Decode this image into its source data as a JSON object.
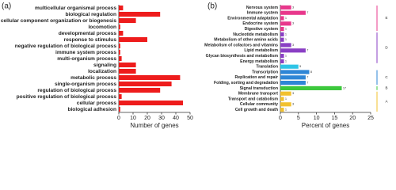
{
  "chart_data": [
    {
      "type": "bar",
      "orientation": "horizontal",
      "panel_label": "(a)",
      "x_label": "Number of genes",
      "categories": [
        "multicellular organismal process",
        "biological regulation",
        "cellular component organization or biogenesis",
        "locomotion",
        "developmental process",
        "response to stimulus",
        "negative regulation of biological process",
        "immune system process",
        "multi-organism process",
        "signaling",
        "localization",
        "metabolic process",
        "single-organism process",
        "regulation of biological process",
        "positive regulation of biological process",
        "cellular process",
        "biological adhesion"
      ],
      "values": [
        3,
        29,
        12,
        1,
        3,
        20,
        1,
        1,
        2,
        12,
        12,
        43,
        37,
        29,
        2,
        45,
        1
      ],
      "color": "#ee1c1c",
      "xlim": [
        0,
        50
      ],
      "xticks": [
        0,
        10,
        20,
        30,
        40,
        50
      ]
    },
    {
      "type": "bar",
      "orientation": "horizontal",
      "panel_label": "(b)",
      "x_label": "Percent of genes",
      "categories": [
        "Nervous system",
        "Immune system",
        "Environmental adaptation",
        "Endocrine system",
        "Digestive system",
        "Nucleotide metabolism",
        "Metabolism of other amino acids",
        "Metabolism of cofactors and vitamins",
        "Lipid metabolism",
        "Glycan biosynthesis and metabolism",
        "Energy metabolism",
        "Translation",
        "Transcription",
        "Replication and repair",
        "Folding, sorting and degradation",
        "Signal transduction",
        "Membrane transport",
        "Transport and catabolism",
        "Cellular community",
        "Cell growth and death"
      ],
      "values": [
        3,
        7,
        1,
        3,
        1,
        1,
        1,
        3,
        7,
        1,
        1,
        5,
        8,
        7,
        7,
        17,
        3,
        1,
        3,
        1
      ],
      "colors": [
        "#e8388c",
        "#e8388c",
        "#e8388c",
        "#e8388c",
        "#e8388c",
        "#8a3fc4",
        "#8a3fc4",
        "#8a3fc4",
        "#8a3fc4",
        "#8a3fc4",
        "#8a3fc4",
        "#2ec4e6",
        "#2e86d6",
        "#2e86d6",
        "#2e86d6",
        "#3cc83c",
        "#f2c12e",
        "#f2c12e",
        "#f2c12e",
        "#f2c12e"
      ],
      "value_labels_shown": true,
      "groups": [
        {
          "label": "E",
          "color": "#e8388c"
        },
        {
          "label": "D",
          "color": "#8a3fc4"
        },
        {
          "label": "C",
          "color": "#2e86d6"
        },
        {
          "label": "B",
          "color": "#3cc83c"
        },
        {
          "label": "A",
          "color": "#f2c12e"
        }
      ],
      "xlim": [
        0,
        25
      ],
      "xticks": [
        0,
        5,
        10,
        15,
        20,
        25
      ]
    }
  ]
}
